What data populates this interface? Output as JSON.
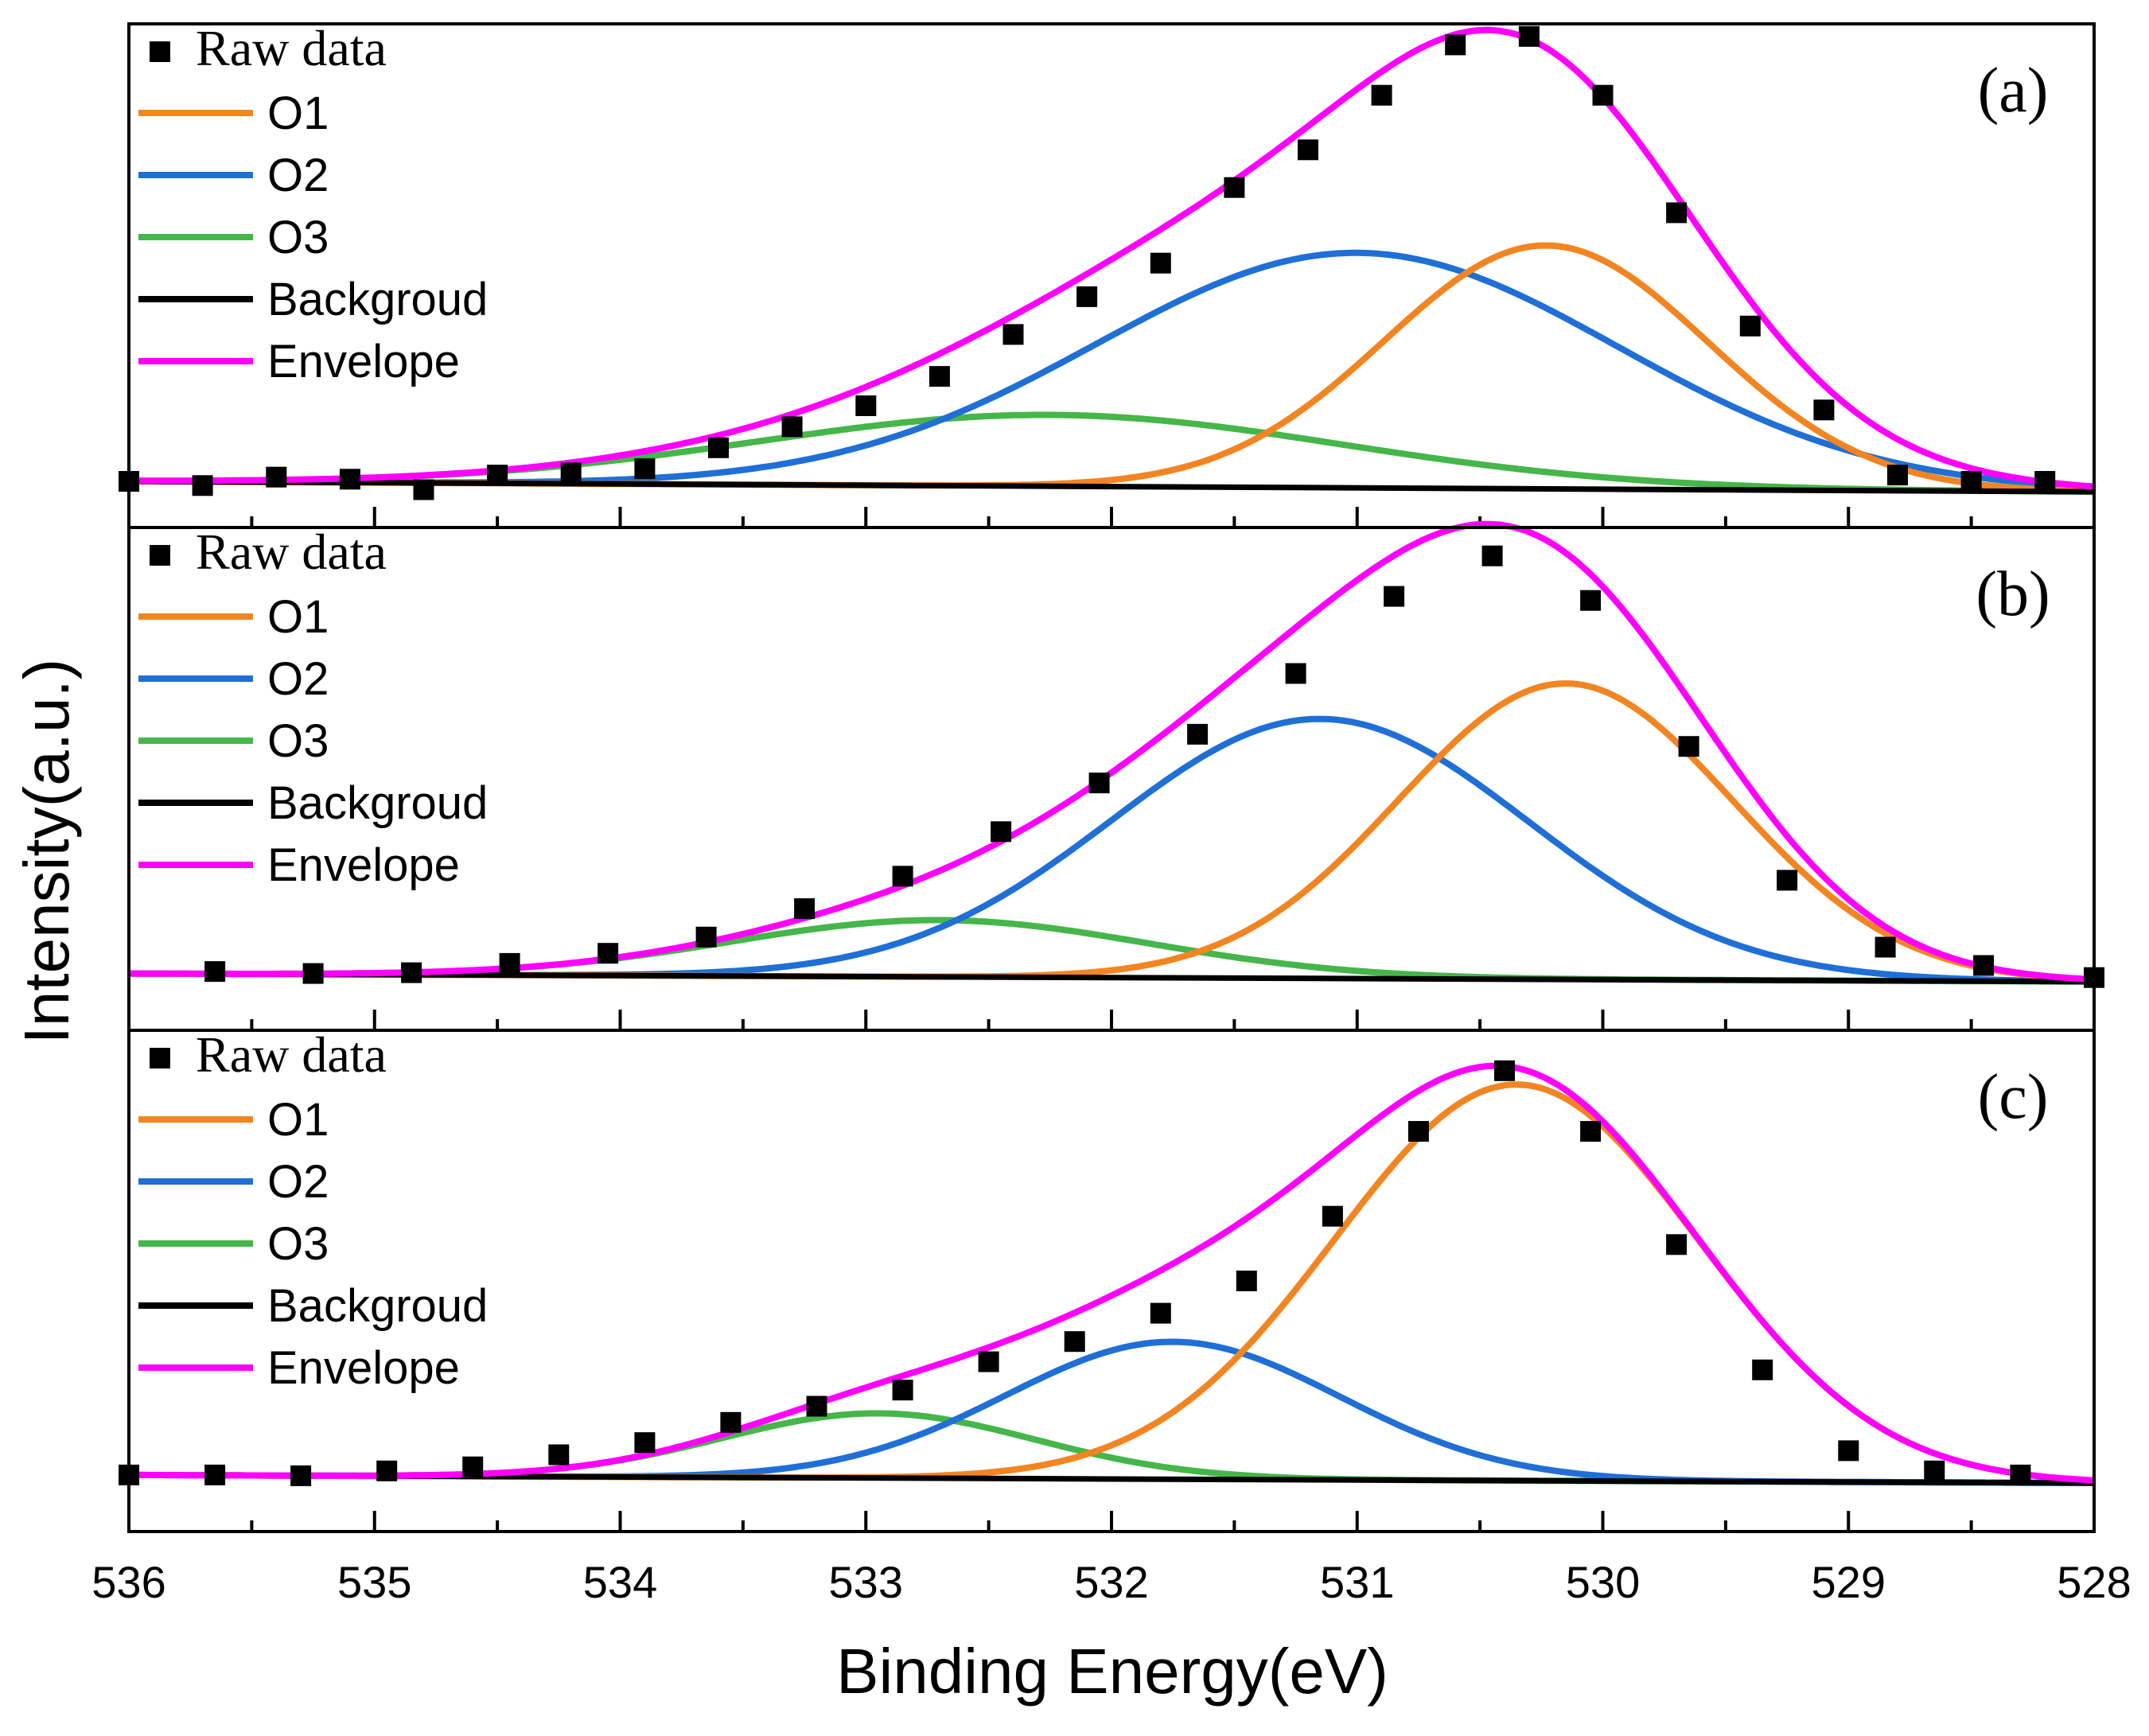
{
  "chart_data": {
    "type": "line",
    "xlabel": "Binding Energy(eV)",
    "ylabel": "Intensity(a.u.)",
    "xlim": [
      536,
      528
    ],
    "x_ticks": [
      "536",
      "535",
      "534",
      "533",
      "532",
      "531",
      "530",
      "529",
      "528"
    ],
    "legend": [
      "Raw data",
      "O1",
      "O2",
      "O3",
      "Backgroud",
      "Envelope"
    ],
    "colors": {
      "O1": "#F28522",
      "O2": "#1F6FD6",
      "O3": "#45B649",
      "Backgroud": "#000000",
      "Envelope": "#FF00FF",
      "Raw data": "#000000"
    },
    "panels": [
      {
        "label": "(a)",
        "ylim": [
          -0.08,
          1.12
        ],
        "background": [
          0.03,
          0.005
        ],
        "components": [
          {
            "name": "O1",
            "center": 530.23,
            "height": 0.58,
            "fwhm": 1.55
          },
          {
            "name": "O2",
            "center": 531.0,
            "height": 0.56,
            "fwhm": 2.5
          },
          {
            "name": "O3",
            "center": 532.25,
            "height": 0.17,
            "fwhm": 2.8
          }
        ],
        "raw_x": [
          536.0,
          535.7,
          535.4,
          535.1,
          534.8,
          534.5,
          534.2,
          533.9,
          533.6,
          533.3,
          533.0,
          532.7,
          532.4,
          532.1,
          531.8,
          531.5,
          531.2,
          530.9,
          530.6,
          530.3,
          530.0,
          529.7,
          529.4,
          529.1,
          528.8,
          528.5,
          528.2
        ],
        "raw_y": [
          0.03,
          0.02,
          0.04,
          0.035,
          0.01,
          0.045,
          0.05,
          0.06,
          0.11,
          0.16,
          0.21,
          0.28,
          0.38,
          0.47,
          0.55,
          0.73,
          0.82,
          0.95,
          1.07,
          1.09,
          0.95,
          0.67,
          0.4,
          0.2,
          0.045,
          0.03,
          0.03
        ]
      },
      {
        "label": "(b)",
        "ylim": [
          -0.12,
          1.12
        ],
        "background": [
          0.02,
          0.0
        ],
        "components": [
          {
            "name": "O1",
            "center": 530.15,
            "height": 0.73,
            "fwhm": 1.6
          },
          {
            "name": "O2",
            "center": 531.15,
            "height": 0.64,
            "fwhm": 2.0
          },
          {
            "name": "O3",
            "center": 532.7,
            "height": 0.14,
            "fwhm": 2.0
          }
        ],
        "raw_x": [
          535.65,
          535.25,
          534.85,
          534.45,
          534.05,
          533.65,
          533.25,
          532.85,
          532.45,
          532.05,
          531.65,
          531.25,
          530.85,
          530.45,
          530.05,
          529.65,
          529.25,
          528.85,
          528.45,
          528.0
        ],
        "raw_y": [
          0.025,
          0.02,
          0.022,
          0.045,
          0.07,
          0.11,
          0.18,
          0.26,
          0.37,
          0.49,
          0.61,
          0.76,
          0.95,
          1.05,
          0.94,
          0.58,
          0.25,
          0.085,
          0.04,
          0.01
        ]
      },
      {
        "label": "(c)",
        "ylim": [
          -0.12,
          1.12
        ],
        "background": [
          0.02,
          0.0
        ],
        "components": [
          {
            "name": "O1",
            "center": 530.35,
            "height": 0.98,
            "fwhm": 1.75
          },
          {
            "name": "O2",
            "center": 531.75,
            "height": 0.34,
            "fwhm": 1.6
          },
          {
            "name": "O3",
            "center": 532.95,
            "height": 0.16,
            "fwhm": 1.5
          }
        ],
        "raw_x": [
          536.0,
          535.65,
          535.3,
          534.95,
          534.6,
          534.25,
          533.9,
          533.55,
          533.2,
          532.85,
          532.5,
          532.15,
          531.8,
          531.45,
          531.1,
          530.75,
          530.4,
          530.05,
          529.7,
          529.35,
          529.0,
          528.65,
          528.3
        ],
        "raw_y": [
          0.02,
          0.02,
          0.018,
          0.03,
          0.04,
          0.07,
          0.1,
          0.15,
          0.19,
          0.23,
          0.3,
          0.35,
          0.42,
          0.5,
          0.66,
          0.87,
          1.02,
          0.87,
          0.59,
          0.28,
          0.08,
          0.03,
          0.02
        ]
      }
    ]
  }
}
